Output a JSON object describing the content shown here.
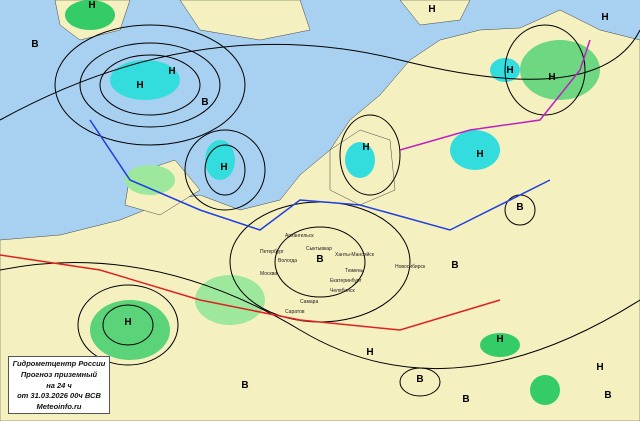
{
  "legend": {
    "org": "Гидрометцентр России",
    "title": "Прогноз  приземный",
    "lead": "на 24 ч",
    "issued": "от 31.03.2026 00ч ВСВ",
    "site": "Meteoinfo.ru"
  },
  "colors": {
    "sea": "#a8d0f0",
    "land": "#f5f0c0",
    "precip_light": "#9de89d",
    "precip_heavy": "#33cc66",
    "snow": "#33dddd",
    "isobar": "#000000",
    "warm_front": "#e02020",
    "cold_front": "#2040e0",
    "rivers": "#2050ff"
  },
  "pressure_centers": {
    "lows": [
      [
        "Н",
        92,
        8
      ],
      [
        "Н",
        140,
        88
      ],
      [
        "Н",
        172,
        74
      ],
      [
        "Н",
        224,
        170
      ],
      [
        "Н",
        366,
        150
      ],
      [
        "Н",
        432,
        12
      ],
      [
        "Н",
        480,
        157
      ],
      [
        "Н",
        510,
        73
      ],
      [
        "Н",
        552,
        80
      ],
      [
        "Н",
        605,
        20
      ],
      [
        "Н",
        128,
        325
      ],
      [
        "Н",
        370,
        355
      ],
      [
        "Н",
        500,
        342
      ],
      [
        "Н",
        600,
        370
      ]
    ],
    "highs": [
      [
        "В",
        35,
        47
      ],
      [
        "В",
        205,
        105
      ],
      [
        "В",
        320,
        262
      ],
      [
        "В",
        520,
        210
      ],
      [
        "В",
        455,
        268
      ],
      [
        "В",
        420,
        382
      ],
      [
        "В",
        466,
        402
      ],
      [
        "В",
        608,
        398
      ],
      [
        "В",
        245,
        388
      ]
    ]
  },
  "cities": [
    [
      "Архангельск",
      285,
      237
    ],
    [
      "Петербург",
      260,
      253
    ],
    [
      "Вологда",
      278,
      262
    ],
    [
      "Москва",
      260,
      275
    ],
    [
      "Сыктывкар",
      306,
      256
    ],
    [
      "Ханты-Мансийск",
      335,
      256
    ],
    [
      "Тюмень",
      345,
      272
    ],
    [
      "Екатеринбург",
      330,
      282
    ],
    [
      "Челябинск",
      330,
      292
    ],
    [
      "Самара",
      300,
      303
    ],
    [
      "Саратов",
      285,
      313
    ],
    [
      "Новосибирск",
      395,
      268
    ]
  ]
}
